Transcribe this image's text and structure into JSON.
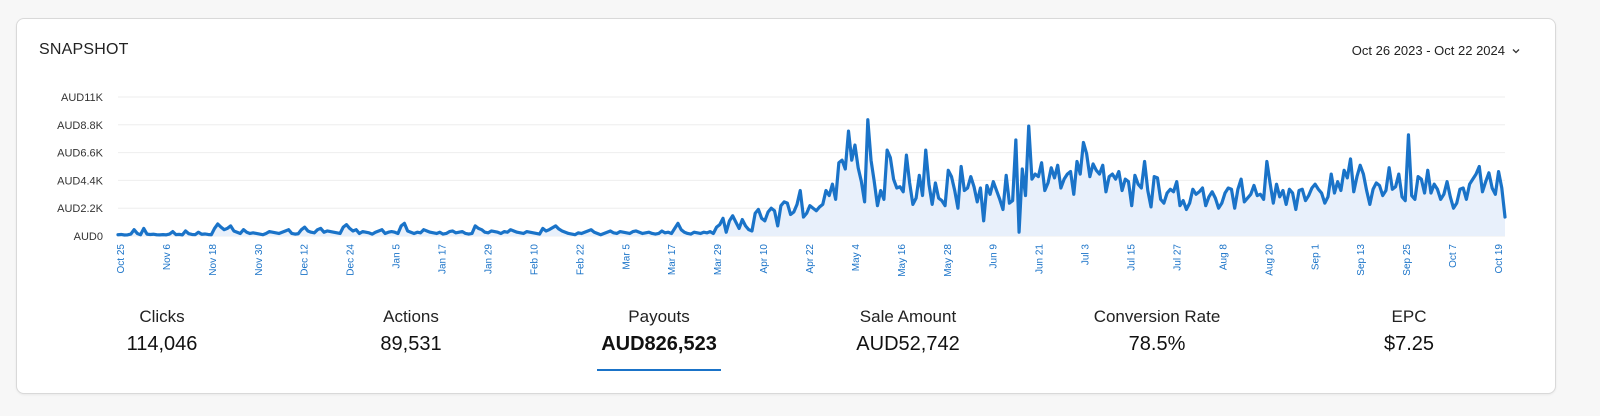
{
  "card": {
    "title": "SNAPSHOT",
    "date_range": "Oct 26 2023 - Oct 22 2024"
  },
  "metrics": [
    {
      "label": "Clicks",
      "value": "114,046",
      "active": false
    },
    {
      "label": "Actions",
      "value": "89,531",
      "active": false
    },
    {
      "label": "Payouts",
      "value": "AUD826,523",
      "active": true
    },
    {
      "label": "Sale Amount",
      "value": "AUD52,742",
      "active": false
    },
    {
      "label": "Conversion Rate",
      "value": "78.5%",
      "active": false
    },
    {
      "label": "EPC",
      "value": "$7.25",
      "active": false
    }
  ],
  "colors": {
    "line": "#1a73c8",
    "fill": "#e8f0fb",
    "axis_label": "#1a73c8",
    "grid": "#eeeeee"
  },
  "icons": {
    "date_range": "chevron-down-icon"
  },
  "chart_data": {
    "type": "area",
    "title": "",
    "xlabel": "",
    "ylabel": "",
    "y_unit": "AUD",
    "ylim": [
      0,
      11000
    ],
    "y_ticks": [
      0,
      2200,
      4400,
      6600,
      8800,
      11000
    ],
    "y_tick_labels": [
      "AUD0",
      "AUD2.2K",
      "AUD4.4K",
      "AUD6.6K",
      "AUD8.8K",
      "AUD11K"
    ],
    "x_tick_labels": [
      "Oct 25",
      "Nov 6",
      "Nov 18",
      "Nov 30",
      "Dec 12",
      "Dec 24",
      "Jan 5",
      "Jan 17",
      "Jan 29",
      "Feb 10",
      "Feb 22",
      "Mar 5",
      "Mar 17",
      "Mar 29",
      "Apr 10",
      "Apr 22",
      "May 4",
      "May 16",
      "May 28",
      "Jun 9",
      "Jun 21",
      "Jul 3",
      "Jul 15",
      "Jul 27",
      "Aug 8",
      "Aug 20",
      "Sep 1",
      "Sep 13",
      "Sep 25",
      "Oct 7",
      "Oct 19"
    ],
    "grid": true,
    "legend": "none",
    "series": [
      {
        "x_start": "2023-10-25",
        "x_end": "2024-10-22",
        "values": [
          100,
          120,
          80,
          90,
          150,
          500,
          200,
          100,
          600,
          150,
          120,
          140,
          100,
          90,
          110,
          90,
          150,
          350,
          110,
          130,
          90,
          400,
          180,
          120,
          110,
          300,
          140,
          160,
          120,
          100,
          600,
          950,
          700,
          500,
          600,
          800,
          400,
          300,
          200,
          500,
          300,
          200,
          250,
          200,
          150,
          100,
          200,
          350,
          300,
          250,
          200,
          300,
          400,
          500,
          200,
          150,
          180,
          500,
          700,
          400,
          300,
          250,
          500,
          600,
          300,
          400,
          350,
          300,
          250,
          200,
          700,
          900,
          600,
          400,
          500,
          200,
          350,
          300,
          250,
          150,
          300,
          400,
          500,
          200,
          300,
          350,
          300,
          200,
          800,
          1000,
          400,
          300,
          200,
          300,
          250,
          500,
          400,
          300,
          250,
          200,
          300,
          150,
          200,
          350,
          400,
          250,
          300,
          350,
          200,
          150,
          200,
          800,
          600,
          500,
          300,
          250,
          400,
          350,
          300,
          200,
          350,
          300,
          500,
          400,
          300,
          250,
          200,
          350,
          300,
          250,
          200,
          150,
          600,
          400,
          500,
          650,
          800,
          550,
          400,
          300,
          200,
          150,
          100,
          250,
          200,
          300,
          400,
          500,
          300,
          200,
          100,
          200,
          300,
          400,
          250,
          200,
          350,
          300,
          250,
          200,
          350,
          400,
          300,
          200,
          250,
          300,
          200,
          150,
          200,
          400,
          250,
          300,
          200,
          600,
          1000,
          500,
          300,
          200,
          150,
          300,
          250,
          200,
          300,
          250,
          350,
          200,
          700,
          900,
          1400,
          300,
          1200,
          1600,
          1100,
          600,
          1300,
          800,
          500,
          400,
          1800,
          2100,
          1400,
          1200,
          1900,
          2200,
          2000,
          800,
          2400,
          2700,
          2600,
          1700,
          1900,
          2500,
          3600,
          1500,
          1800,
          2400,
          2200,
          2000,
          2300,
          2500,
          3600,
          3200,
          4100,
          2900,
          5800,
          6000,
          5300,
          8300,
          6000,
          7200,
          5400,
          4300,
          2700,
          9200,
          6000,
          4300,
          2400,
          3600,
          2900,
          6800,
          6200,
          4500,
          3800,
          3900,
          3500,
          6400,
          4200,
          2500,
          3000,
          4800,
          3200,
          6800,
          4100,
          2500,
          4200,
          3000,
          2800,
          2400,
          5200,
          4700,
          3600,
          2200,
          5500,
          3600,
          3800,
          4700,
          3900,
          2700,
          3800,
          1200,
          4000,
          3300,
          4300,
          3600,
          2900,
          2100,
          4800,
          2600,
          2800,
          7600,
          300,
          5300,
          3200,
          8700,
          4500,
          4900,
          4700,
          5800,
          3600,
          4200,
          5400,
          4600,
          5600,
          3800,
          4500,
          4900,
          5100,
          3300,
          5900,
          4900,
          7400,
          6500,
          4700,
          5700,
          5200,
          4900,
          5600,
          3500,
          4700,
          4900,
          4500,
          5100,
          3600,
          4500,
          4300,
          2400,
          4800,
          4100,
          3800,
          5900,
          3600,
          2300,
          4700,
          4600,
          2900,
          2600,
          3400,
          3700,
          3500,
          4300,
          2400,
          2800,
          2100,
          2600,
          3700,
          3300,
          3500,
          3800,
          2400,
          3100,
          3500,
          3000,
          2200,
          2600,
          3400,
          3800,
          3700,
          2200,
          3700,
          4500,
          2700,
          3000,
          3300,
          4000,
          3200,
          3300,
          2900,
          5900,
          4200,
          2600,
          4100,
          3100,
          3600,
          2500,
          3700,
          3400,
          2100,
          3600,
          3700,
          2800,
          3200,
          3800,
          4100,
          3700,
          3400,
          2600,
          3100,
          4900,
          3400,
          4300,
          3600,
          5200,
          4600,
          6100,
          3500,
          4700,
          5600,
          4900,
          3600,
          2500,
          3700,
          4200,
          4000,
          3200,
          3600,
          5400,
          3700,
          3900,
          4900,
          3100,
          2800,
          8000,
          3200,
          2900,
          4700,
          4500,
          3400,
          5200,
          3400,
          4100,
          3700,
          2900,
          3300,
          4300,
          3100,
          2200,
          2600,
          3700,
          3800,
          2900,
          4100,
          4500,
          4900,
          5500,
          3500,
          4300,
          5000,
          3800,
          3300,
          5100,
          3800,
          1500
        ]
      }
    ]
  }
}
